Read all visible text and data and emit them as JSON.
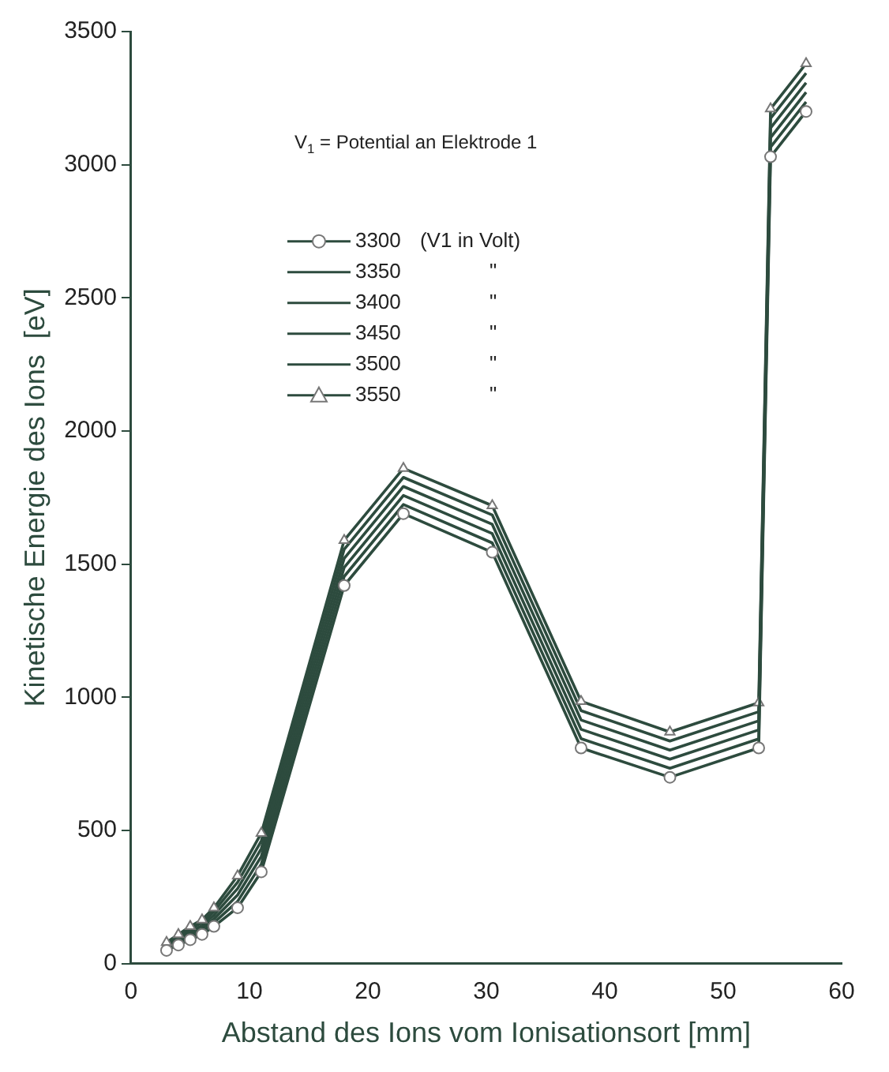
{
  "chart_data": {
    "type": "line",
    "xlabel": "Abstand des Ions vom Ionisationsort [mm]",
    "ylabel": "Kinetische Energie des Ions  [eV]",
    "annotations": [
      "V$_{1}$ = Potential an Elektrode 1",
      "(V1 in Volt)",
      "\"",
      "\"",
      "\"",
      "\"",
      "\""
    ],
    "x": [
      3,
      4,
      5,
      6,
      7,
      9,
      11,
      18,
      23,
      30.5,
      38,
      45.5,
      53,
      54,
      57
    ],
    "series": [
      {
        "name": "3300",
        "color": "#2d4b3e",
        "marker": "circle",
        "values": [
          50,
          70,
          90,
          110,
          140,
          210,
          345,
          1420,
          1690,
          1545,
          810,
          700,
          810,
          3030,
          3200
        ]
      },
      {
        "name": "3350",
        "color": "#2d4b3e",
        "marker": "none",
        "values": [
          56,
          78,
          100,
          121,
          154,
          234,
          374,
          1454,
          1724,
          1580,
          845,
          734,
          844,
          3066,
          3236
        ]
      },
      {
        "name": "3400",
        "color": "#2d4b3e",
        "marker": "none",
        "values": [
          62,
          86,
          110,
          132,
          168,
          258,
          403,
          1488,
          1758,
          1615,
          880,
          768,
          878,
          3102,
          3272
        ]
      },
      {
        "name": "3450",
        "color": "#2d4b3e",
        "marker": "none",
        "values": [
          68,
          94,
          120,
          143,
          182,
          282,
          432,
          1522,
          1792,
          1650,
          915,
          802,
          912,
          3138,
          3308
        ]
      },
      {
        "name": "3500",
        "color": "#2d4b3e",
        "marker": "none",
        "values": [
          74,
          102,
          130,
          154,
          196,
          306,
          461,
          1556,
          1826,
          1685,
          950,
          836,
          946,
          3174,
          3344
        ]
      },
      {
        "name": "3550",
        "color": "#2d4b3e",
        "marker": "triangle",
        "values": [
          80,
          110,
          140,
          165,
          210,
          330,
          490,
          1590,
          1860,
          1720,
          985,
          870,
          980,
          3210,
          3380
        ]
      }
    ],
    "xlim": [
      0,
      60
    ],
    "xticks": [
      0,
      10,
      20,
      30,
      40,
      50,
      60
    ],
    "ylim": [
      0,
      3500
    ],
    "yticks": [
      0,
      500,
      1000,
      1500,
      2000,
      2500,
      3000,
      3500
    ],
    "grid": false,
    "legend": "top left",
    "line_style": "solid"
  }
}
